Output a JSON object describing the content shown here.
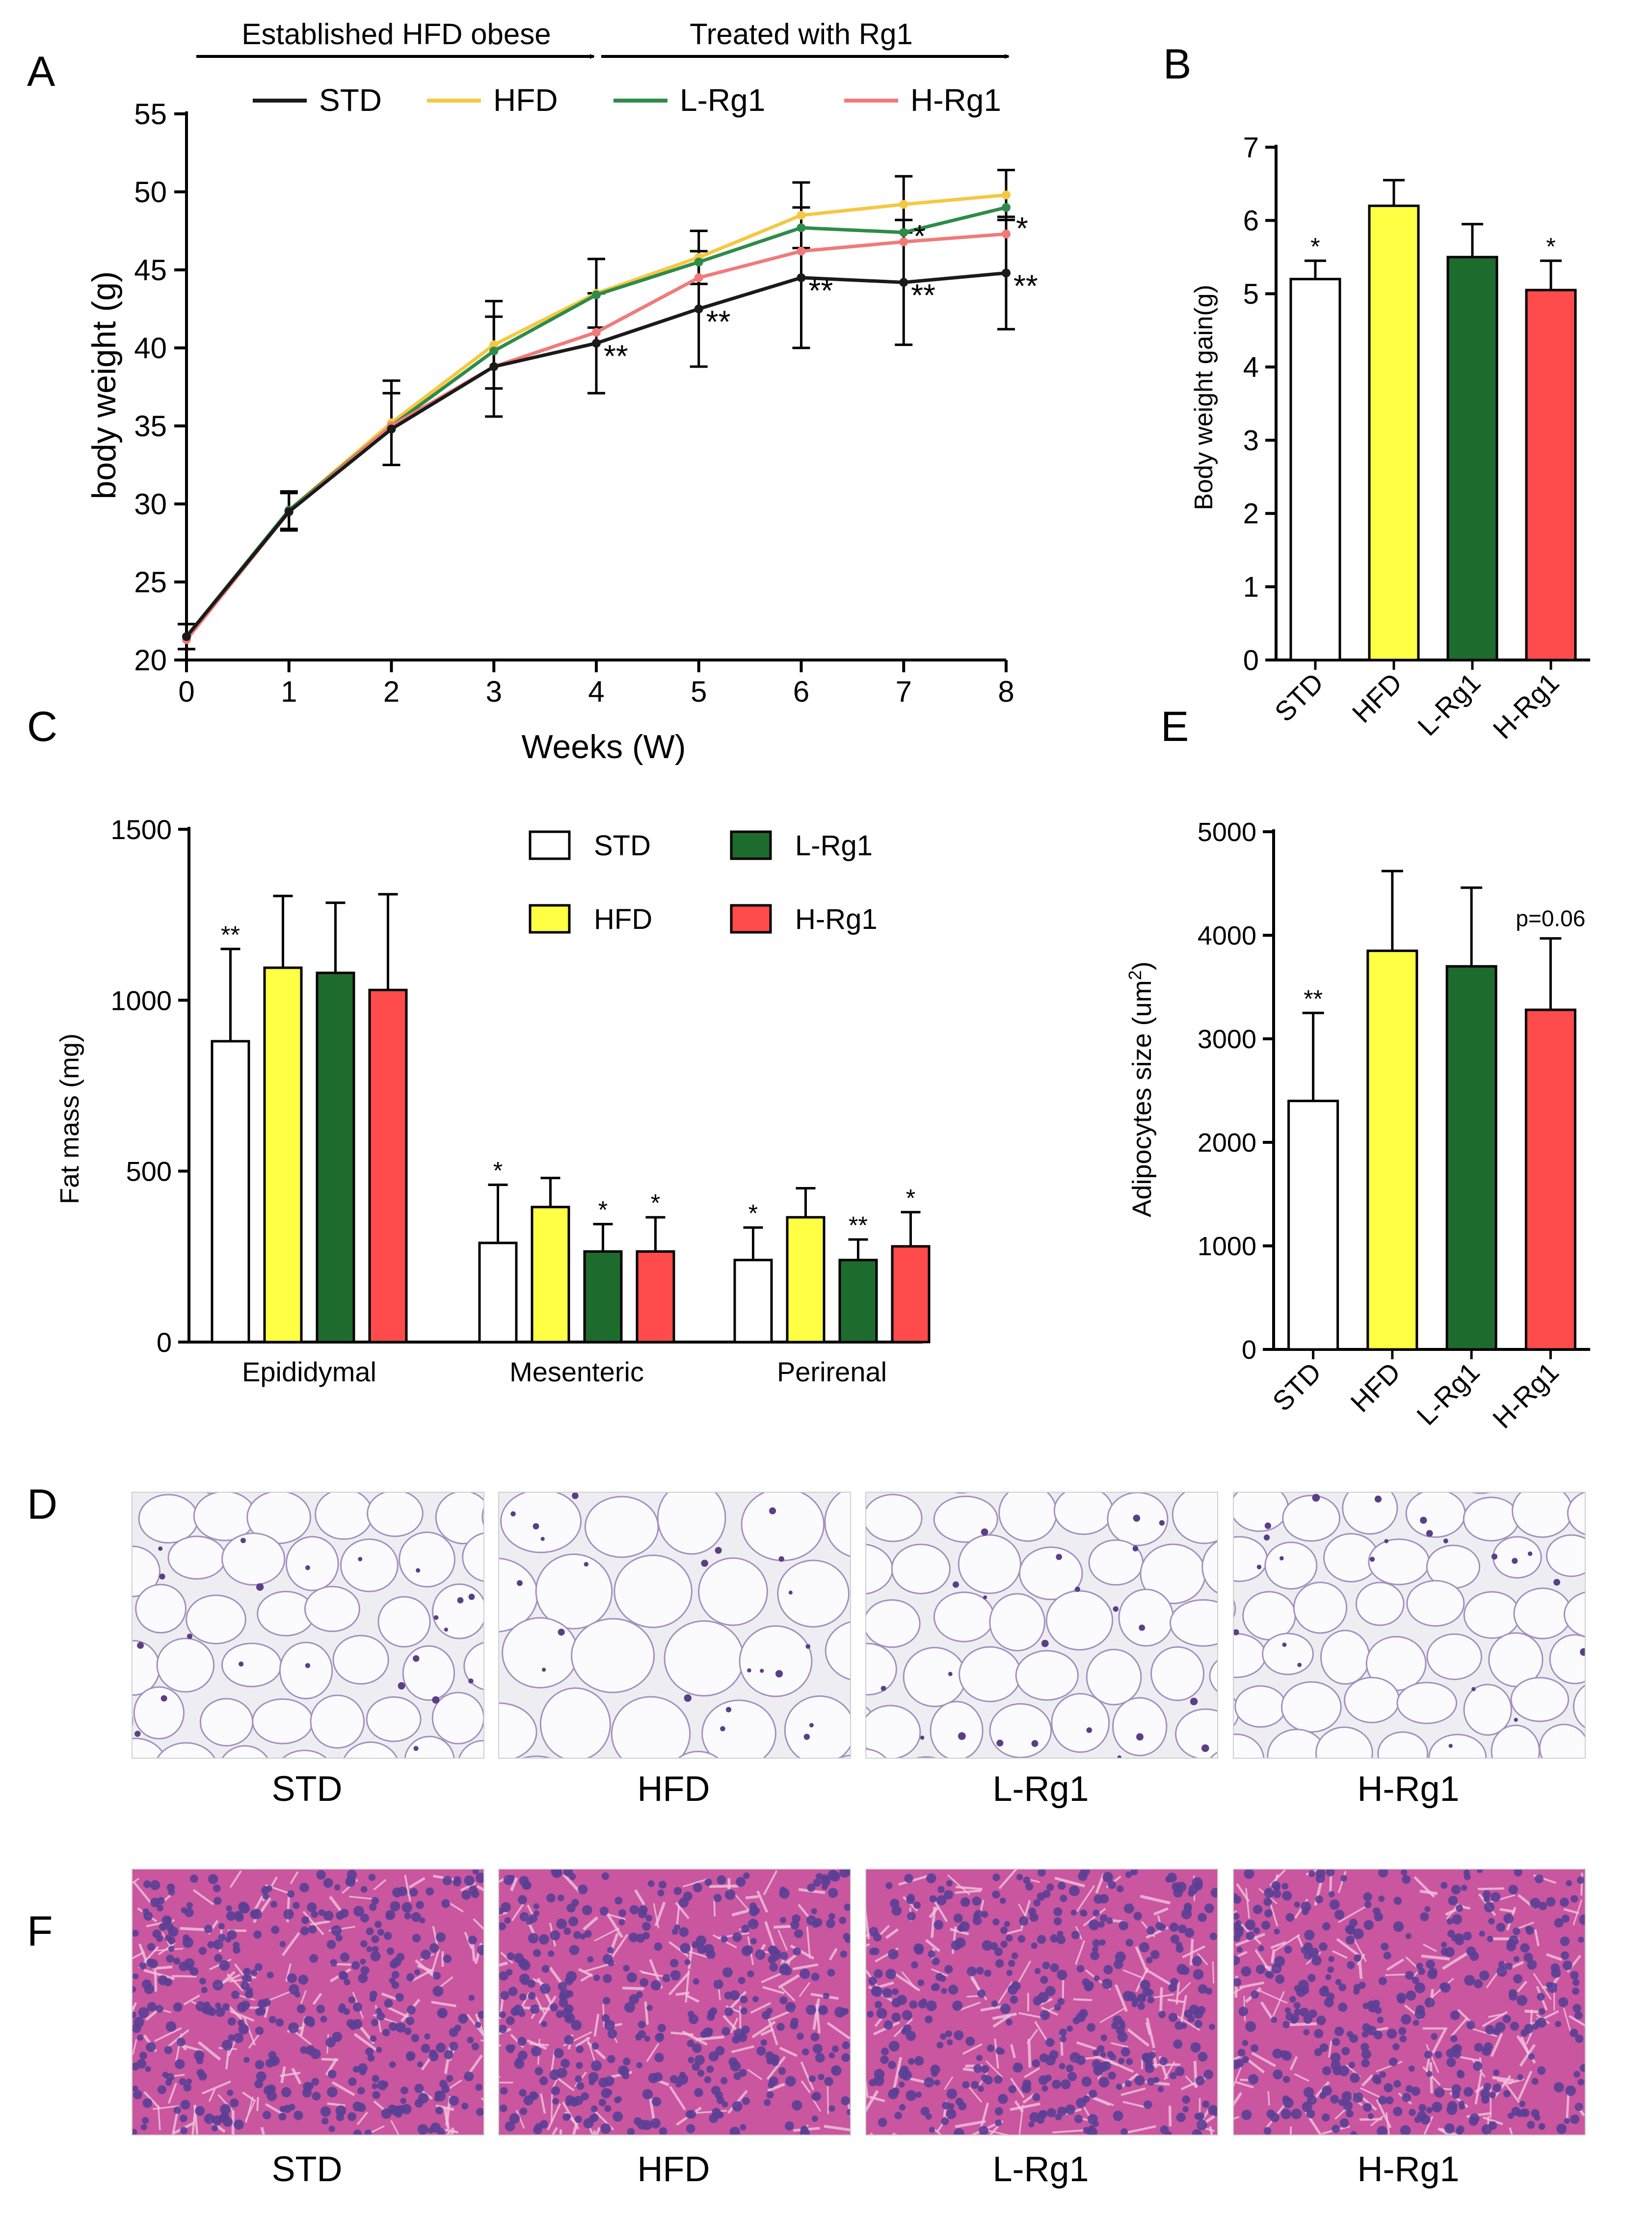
{
  "panels": {
    "A": "A",
    "B": "B",
    "C": "C",
    "D": "D",
    "E": "E",
    "F": "F"
  },
  "groups": [
    "STD",
    "HFD",
    "L-Rg1",
    "H-Rg1"
  ],
  "colors": {
    "STD": "#1a1a1a",
    "HFD": "#f5c842",
    "L-Rg1": "#2e8b4a",
    "H-Rg1": "#f07a7a",
    "bar_STD": "#ffffff",
    "bar_HFD": "#ffff44",
    "bar_L-Rg1": "#1e6b2e",
    "bar_H-Rg1": "#ff4b4b",
    "adipose_bg": "#eeeef2",
    "adipose_membrane": "#a58fbf",
    "liver_bg": "#c9569f",
    "liver_nucleus": "#5a3f95"
  },
  "chart_data": [
    {
      "id": "A",
      "type": "line",
      "title": "",
      "phase_labels": [
        "Established HFD obese",
        "Treated with Rg1"
      ],
      "phase_ranges": [
        [
          0,
          4
        ],
        [
          4,
          8
        ]
      ],
      "xlabel": "Weeks (W)",
      "ylabel": "body weight (g)",
      "x": [
        0,
        1,
        2,
        3,
        4,
        5,
        6,
        7,
        8
      ],
      "xlim": [
        0,
        8
      ],
      "ylim": [
        20,
        55
      ],
      "yticks": [
        20,
        25,
        30,
        35,
        40,
        45,
        50,
        55
      ],
      "series": [
        {
          "name": "STD",
          "values": [
            21.5,
            29.5,
            34.8,
            38.8,
            40.3,
            42.5,
            44.5,
            44.2,
            44.8
          ],
          "errors": [
            0.8,
            1.2,
            2.3,
            3.2,
            3.2,
            3.7,
            4.5,
            4.0,
            3.6
          ]
        },
        {
          "name": "HFD",
          "values": [
            21.5,
            29.6,
            35.2,
            40.2,
            43.5,
            45.8,
            48.5,
            49.2,
            49.8
          ],
          "errors": [
            0.8,
            1.2,
            2.7,
            2.8,
            2.2,
            1.7,
            2.1,
            1.8,
            1.6
          ]
        },
        {
          "name": "L-Rg1",
          "values": [
            21.5,
            29.6,
            35.0,
            39.8,
            43.4,
            45.5,
            47.7,
            47.4,
            49.0
          ],
          "errors": [
            0.8,
            1.2,
            2.5,
            2.8,
            2.2,
            2.0,
            2.0,
            1.8,
            1.6
          ]
        },
        {
          "name": "H-Rg1",
          "values": [
            21.3,
            29.5,
            35.0,
            38.8,
            41.0,
            44.5,
            46.2,
            46.8,
            47.3
          ],
          "errors": [
            0.8,
            1.2,
            2.5,
            3.0,
            3.7,
            2.2,
            2.3,
            2.0,
            1.8
          ]
        }
      ],
      "annotations": [
        {
          "text": "**",
          "x": 4,
          "y": 40.3
        },
        {
          "text": "**",
          "x": 5,
          "y": 42.5
        },
        {
          "text": "**",
          "x": 6,
          "y": 44.5
        },
        {
          "text": "**",
          "x": 7,
          "y": 44.2
        },
        {
          "text": "**",
          "x": 8,
          "y": 44.8
        },
        {
          "text": "*",
          "x": 7,
          "y": 46.8
        },
        {
          "text": "*",
          "x": 8,
          "y": 47.3
        }
      ]
    },
    {
      "id": "B",
      "type": "bar",
      "title": "",
      "xlabel": "",
      "ylabel": "Body weight gain(g)",
      "categories": [
        "STD",
        "HFD",
        "L-Rg1",
        "H-Rg1"
      ],
      "values": [
        5.2,
        6.2,
        5.5,
        5.05
      ],
      "errors": [
        0.25,
        0.35,
        0.45,
        0.4
      ],
      "significance": [
        "*",
        "",
        "",
        "*"
      ],
      "ylim": [
        0,
        7
      ],
      "yticks": [
        0,
        1,
        2,
        3,
        4,
        5,
        6,
        7
      ]
    },
    {
      "id": "C",
      "type": "bar",
      "title": "",
      "xlabel": "",
      "ylabel": "Fat mass (mg)",
      "categories": [
        "Epididymal",
        "Mesenteric",
        "Perirenal"
      ],
      "series": [
        {
          "name": "STD",
          "values": [
            880,
            290,
            240
          ],
          "errors": [
            270,
            170,
            95
          ],
          "significance": [
            "**",
            "*",
            "*"
          ]
        },
        {
          "name": "HFD",
          "values": [
            1095,
            395,
            365
          ],
          "errors": [
            210,
            85,
            85
          ],
          "significance": [
            "",
            "",
            ""
          ]
        },
        {
          "name": "L-Rg1",
          "values": [
            1080,
            265,
            240
          ],
          "errors": [
            205,
            80,
            60
          ],
          "significance": [
            "",
            "*",
            "**"
          ]
        },
        {
          "name": "H-Rg1",
          "values": [
            1030,
            265,
            280
          ],
          "errors": [
            280,
            100,
            100
          ],
          "significance": [
            "",
            "*",
            "*"
          ]
        }
      ],
      "ylim": [
        0,
        1500
      ],
      "yticks": [
        0,
        500,
        1000,
        1500
      ]
    },
    {
      "id": "E",
      "type": "bar",
      "title": "",
      "xlabel": "",
      "ylabel": "Adipocytes size (um",
      "ylabel_sup": "2",
      "ylabel_end": ")",
      "categories": [
        "STD",
        "HFD",
        "L-Rg1",
        "H-Rg1"
      ],
      "values": [
        2400,
        3850,
        3700,
        3280
      ],
      "errors": [
        850,
        770,
        760,
        690
      ],
      "significance": [
        "**",
        "",
        "",
        "p=0.06"
      ],
      "ylim": [
        0,
        5000
      ],
      "yticks": [
        0,
        1000,
        2000,
        3000,
        4000,
        5000
      ]
    }
  ],
  "images": {
    "D": {
      "labels": [
        "STD",
        "HFD",
        "L-Rg1",
        "H-Rg1"
      ],
      "cell_scale": [
        1.0,
        1.35,
        1.05,
        0.95
      ]
    },
    "F": {
      "labels": [
        "STD",
        "HFD",
        "L-Rg1",
        "H-Rg1"
      ]
    }
  }
}
